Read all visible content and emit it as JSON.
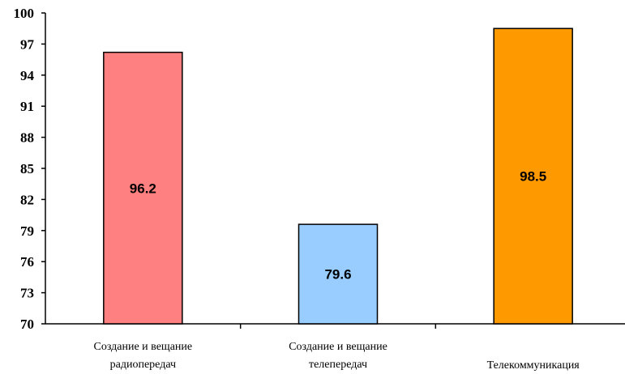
{
  "chart_data": {
    "type": "bar",
    "categories": [
      [
        "Создание и вещание",
        "радиопередач"
      ],
      [
        "Создание и вещание",
        "телепередач"
      ],
      [
        "Телекоммуникация"
      ]
    ],
    "values": [
      96.2,
      79.6,
      98.5
    ],
    "data_labels": [
      "96.2",
      "79.6",
      "98.5"
    ],
    "bar_colors": [
      "#ff8080",
      "#99ccff",
      "#ff9900"
    ],
    "ylim": [
      70,
      100
    ],
    "yticks": [
      70,
      73,
      76,
      79,
      82,
      85,
      88,
      91,
      94,
      97,
      100
    ],
    "ytick_labels": [
      "70",
      "73",
      "76",
      "79",
      "82",
      "85",
      "88",
      "91",
      "94",
      "97",
      "100"
    ],
    "grid": false,
    "legend": "none",
    "title": "",
    "xlabel": "",
    "ylabel": ""
  }
}
